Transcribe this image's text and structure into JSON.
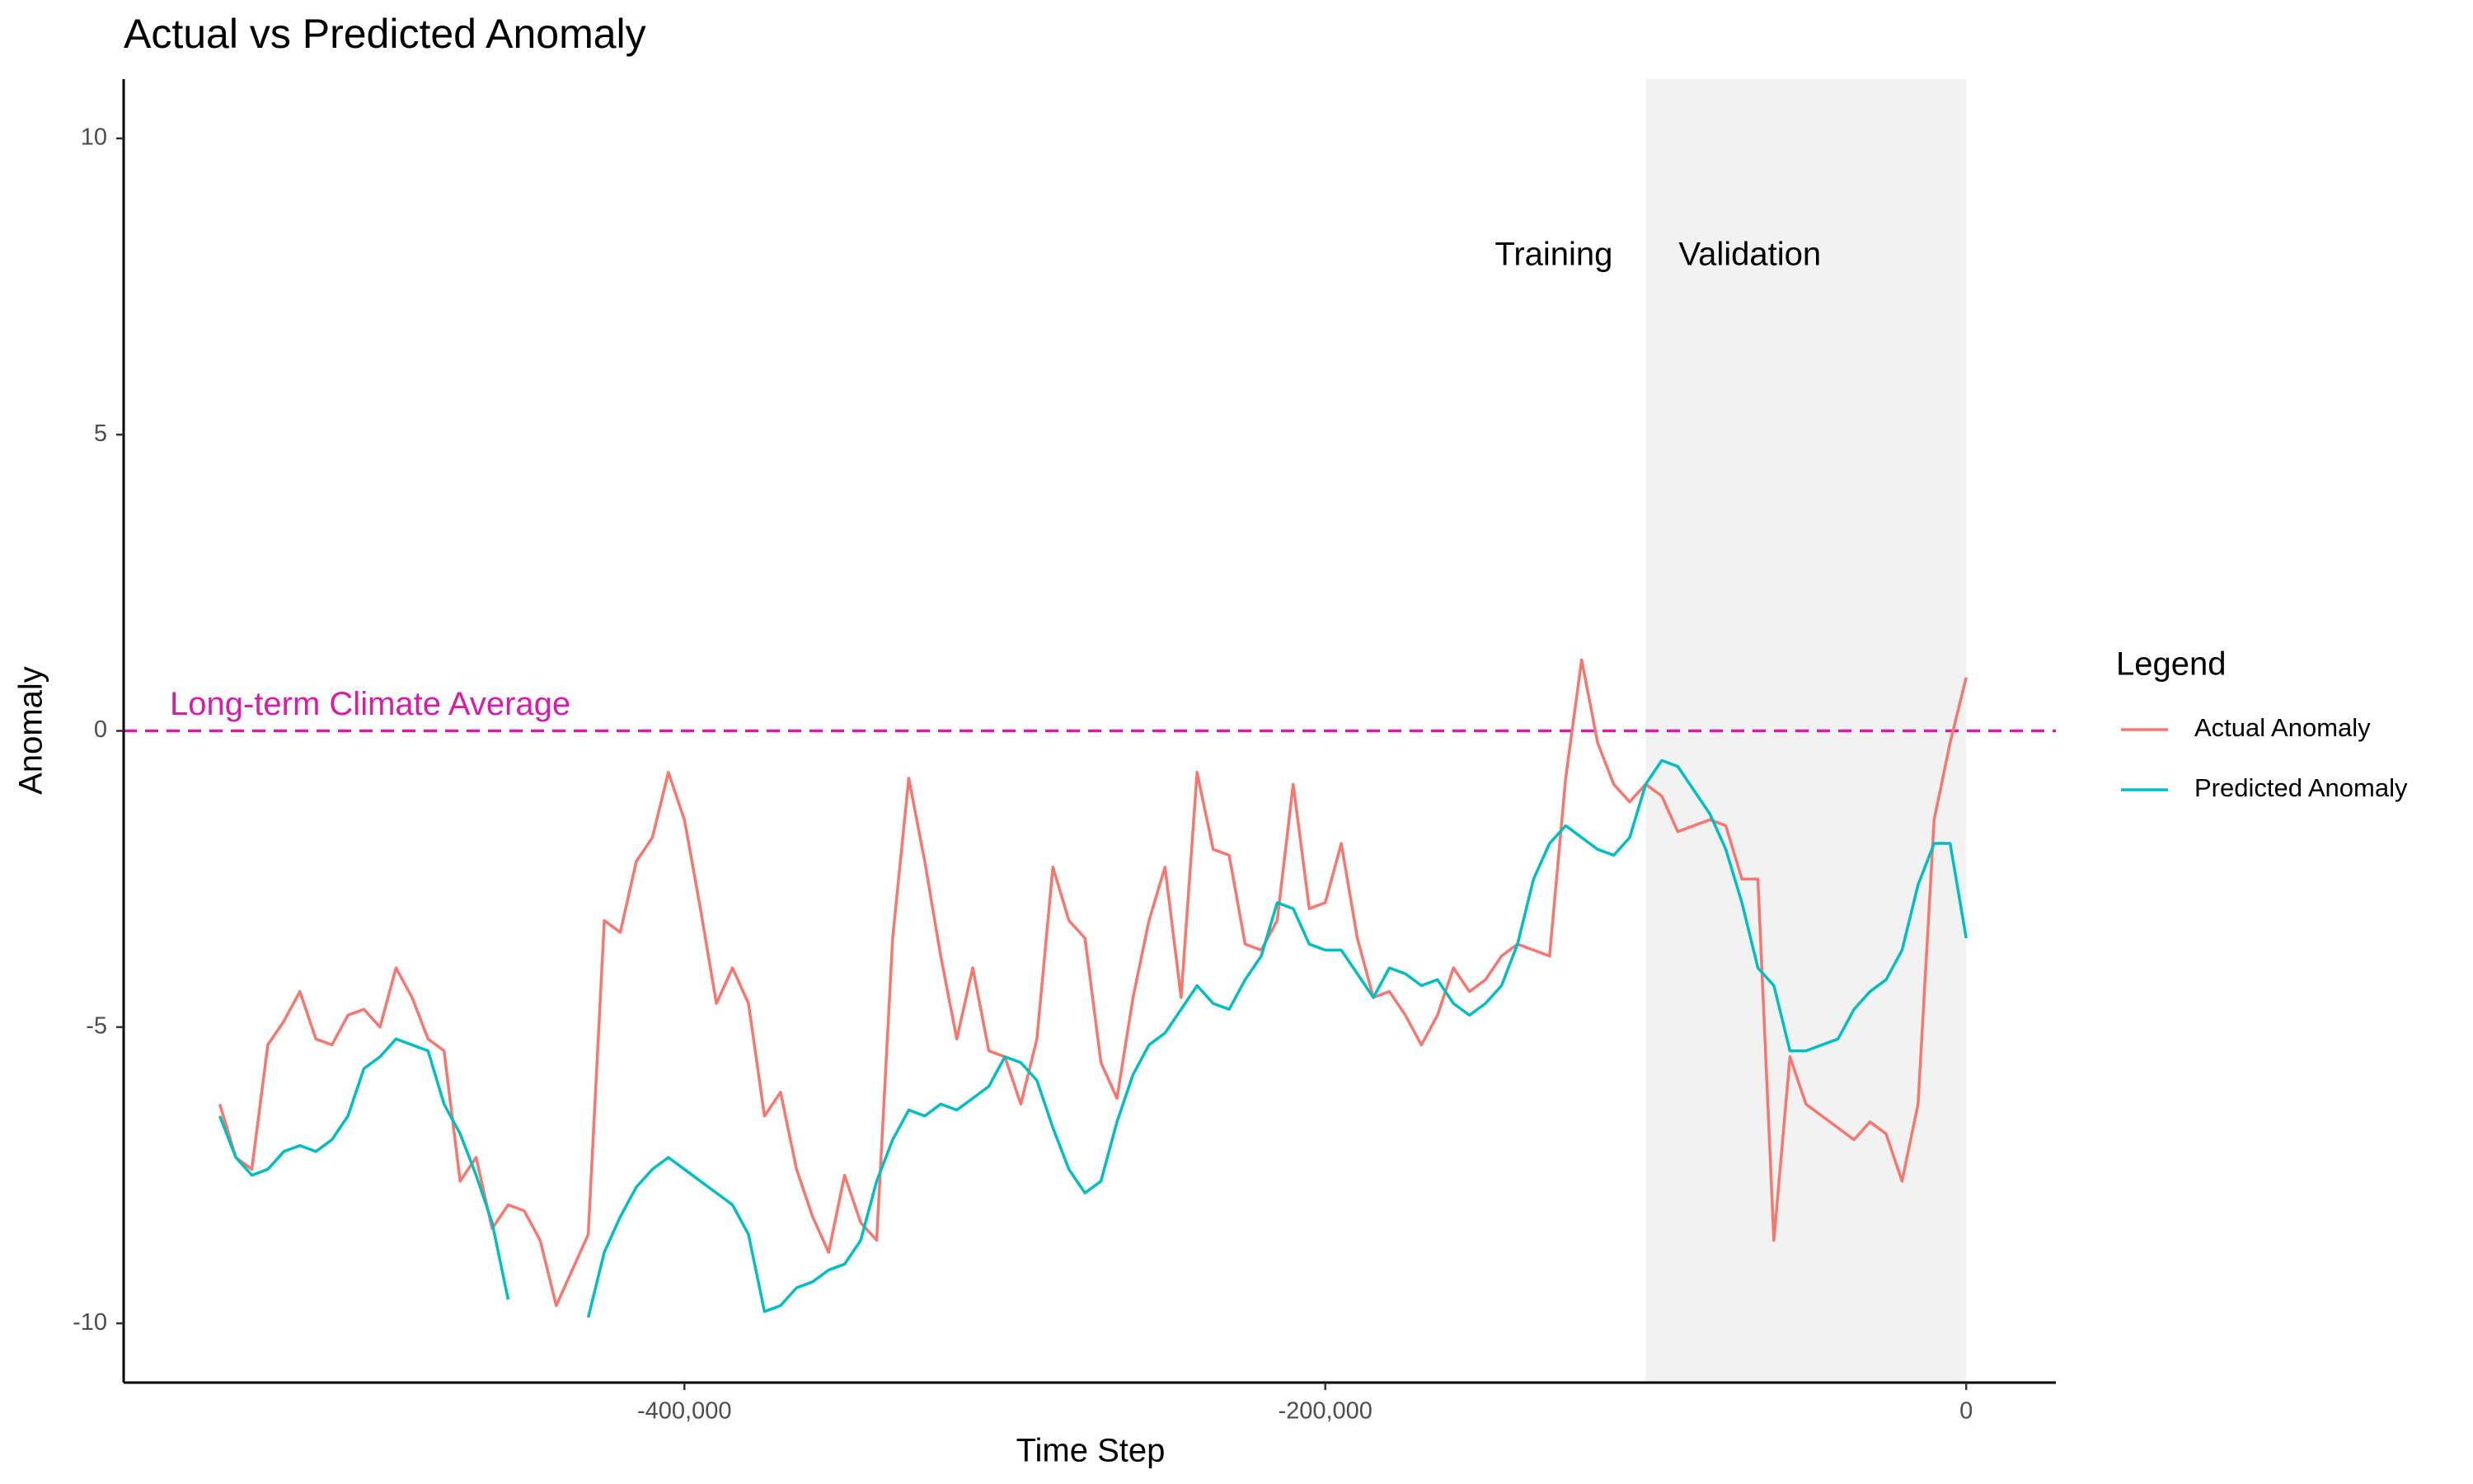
{
  "chart_data": {
    "type": "line",
    "title": "Actual vs Predicted Anomaly",
    "x_label": "Time Step",
    "y_label": "Anomaly",
    "legend_title": "Legend",
    "legend_position": "right",
    "grid": false,
    "xlim": [
      -575000,
      28000
    ],
    "ylim": [
      -11,
      11
    ],
    "xticks": [
      {
        "value": -400000,
        "label": "-400,000"
      },
      {
        "value": -200000,
        "label": "-200,000"
      },
      0
    ],
    "yticks": [
      -10,
      -5,
      0,
      5,
      10
    ],
    "shaded_region": {
      "range": [
        -100000,
        0
      ],
      "color": "#f2f2f2",
      "labels": [
        "Training",
        "Validation"
      ]
    },
    "reference_line": {
      "value": 0,
      "label": "Long-term Climate Average",
      "color": "#dd1aa8"
    },
    "x": [
      -545000,
      -540000,
      -535000,
      -530000,
      -525000,
      -520000,
      -515000,
      -510000,
      -505000,
      -500000,
      -495000,
      -490000,
      -485000,
      -480000,
      -475000,
      -470000,
      -465000,
      -460000,
      -455000,
      -450000,
      -445000,
      -440000,
      -435000,
      -430000,
      -425000,
      -420000,
      -415000,
      -410000,
      -405000,
      -400000,
      -395000,
      -390000,
      -385000,
      -380000,
      -375000,
      -370000,
      -365000,
      -360000,
      -355000,
      -350000,
      -345000,
      -340000,
      -335000,
      -330000,
      -325000,
      -320000,
      -315000,
      -310000,
      -305000,
      -300000,
      -295000,
      -290000,
      -285000,
      -280000,
      -275000,
      -270000,
      -265000,
      -260000,
      -255000,
      -250000,
      -245000,
      -240000,
      -235000,
      -230000,
      -225000,
      -220000,
      -215000,
      -210000,
      -205000,
      -200000,
      -195000,
      -190000,
      -185000,
      -180000,
      -175000,
      -170000,
      -165000,
      -160000,
      -155000,
      -150000,
      -145000,
      -140000,
      -135000,
      -130000,
      -125000,
      -120000,
      -115000,
      -110000,
      -105000,
      -100000,
      -95000,
      -90000,
      -85000,
      -80000,
      -75000,
      -70000,
      -65000,
      -60000,
      -55000,
      -50000,
      -45000,
      -40000,
      -35000,
      -30000,
      -25000,
      -20000,
      -15000,
      -10000,
      -5000,
      0
    ],
    "series": [
      {
        "name": "Actual Anomaly",
        "color": "#f8766d",
        "values": [
          -6.3,
          -7.2,
          -7.4,
          -5.3,
          -4.9,
          -4.4,
          -5.2,
          -5.3,
          -4.8,
          -4.7,
          -5.0,
          -4.0,
          -4.5,
          -5.2,
          -5.4,
          -7.6,
          -7.2,
          -8.4,
          -8.0,
          -8.1,
          -8.6,
          -9.7,
          -9.1,
          -8.5,
          -3.2,
          -3.4,
          -2.2,
          -1.8,
          -0.7,
          -1.5,
          -3.0,
          -4.6,
          -4.0,
          -4.6,
          -6.5,
          -6.1,
          -7.4,
          -8.2,
          -8.8,
          -7.5,
          -8.3,
          -8.6,
          -3.5,
          -0.8,
          -2.2,
          -3.8,
          -5.2,
          -4.0,
          -5.4,
          -5.5,
          -6.3,
          -5.2,
          -2.3,
          -3.2,
          -3.5,
          -5.6,
          -6.2,
          -4.5,
          -3.2,
          -2.3,
          -4.5,
          -0.7,
          -2.0,
          -2.1,
          -3.6,
          -3.7,
          -3.2,
          -0.9,
          -3.0,
          -2.9,
          -1.9,
          -3.5,
          -4.5,
          -4.4,
          -4.8,
          -5.3,
          -4.8,
          -4.0,
          -4.4,
          -4.2,
          -3.8,
          -3.6,
          -3.7,
          -3.8,
          -0.8,
          1.2,
          -0.2,
          -0.9,
          -1.2,
          -0.9,
          -1.1,
          -1.7,
          -1.6,
          -1.5,
          -1.6,
          -2.5,
          -2.5,
          -8.6,
          -5.5,
          -6.3,
          -6.5,
          -6.7,
          -6.9,
          -6.6,
          -6.8,
          -7.6,
          -6.3,
          -1.5,
          -0.2,
          0.9
        ]
      },
      {
        "name": "Predicted Anomaly",
        "color": "#00bfc4",
        "values": [
          -6.5,
          -7.2,
          -7.5,
          -7.4,
          -7.1,
          -7.0,
          -7.1,
          -6.9,
          -6.5,
          -5.7,
          -5.5,
          -5.2,
          -5.3,
          -5.4,
          -6.3,
          -6.8,
          -7.5,
          -8.3,
          -9.6,
          null,
          null,
          null,
          null,
          -9.9,
          -8.8,
          -8.2,
          -7.7,
          -7.4,
          -7.2,
          -7.4,
          -7.6,
          -7.8,
          -8.0,
          -8.5,
          -9.8,
          -9.7,
          -9.4,
          -9.3,
          -9.1,
          -9.0,
          -8.6,
          -7.6,
          -6.9,
          -6.4,
          -6.5,
          -6.3,
          -6.4,
          -6.2,
          -6.0,
          -5.5,
          -5.6,
          -5.9,
          -6.7,
          -7.4,
          -7.8,
          -7.6,
          -6.6,
          -5.8,
          -5.3,
          -5.1,
          -4.7,
          -4.3,
          -4.6,
          -4.7,
          -4.2,
          -3.8,
          -2.9,
          -3.0,
          -3.6,
          -3.7,
          -3.7,
          -4.1,
          -4.5,
          -4.0,
          -4.1,
          -4.3,
          -4.2,
          -4.6,
          -4.8,
          -4.6,
          -4.3,
          -3.6,
          -2.5,
          -1.9,
          -1.6,
          -1.8,
          -2.0,
          -2.1,
          -1.8,
          -0.9,
          -0.5,
          -0.6,
          -1.0,
          -1.4,
          -2.0,
          -2.9,
          -4.0,
          -4.3,
          -5.4,
          -5.4,
          -5.3,
          -5.2,
          -4.7,
          -4.4,
          -4.2,
          -3.7,
          -2.6,
          -1.9,
          -1.9,
          -3.5
        ]
      }
    ]
  }
}
